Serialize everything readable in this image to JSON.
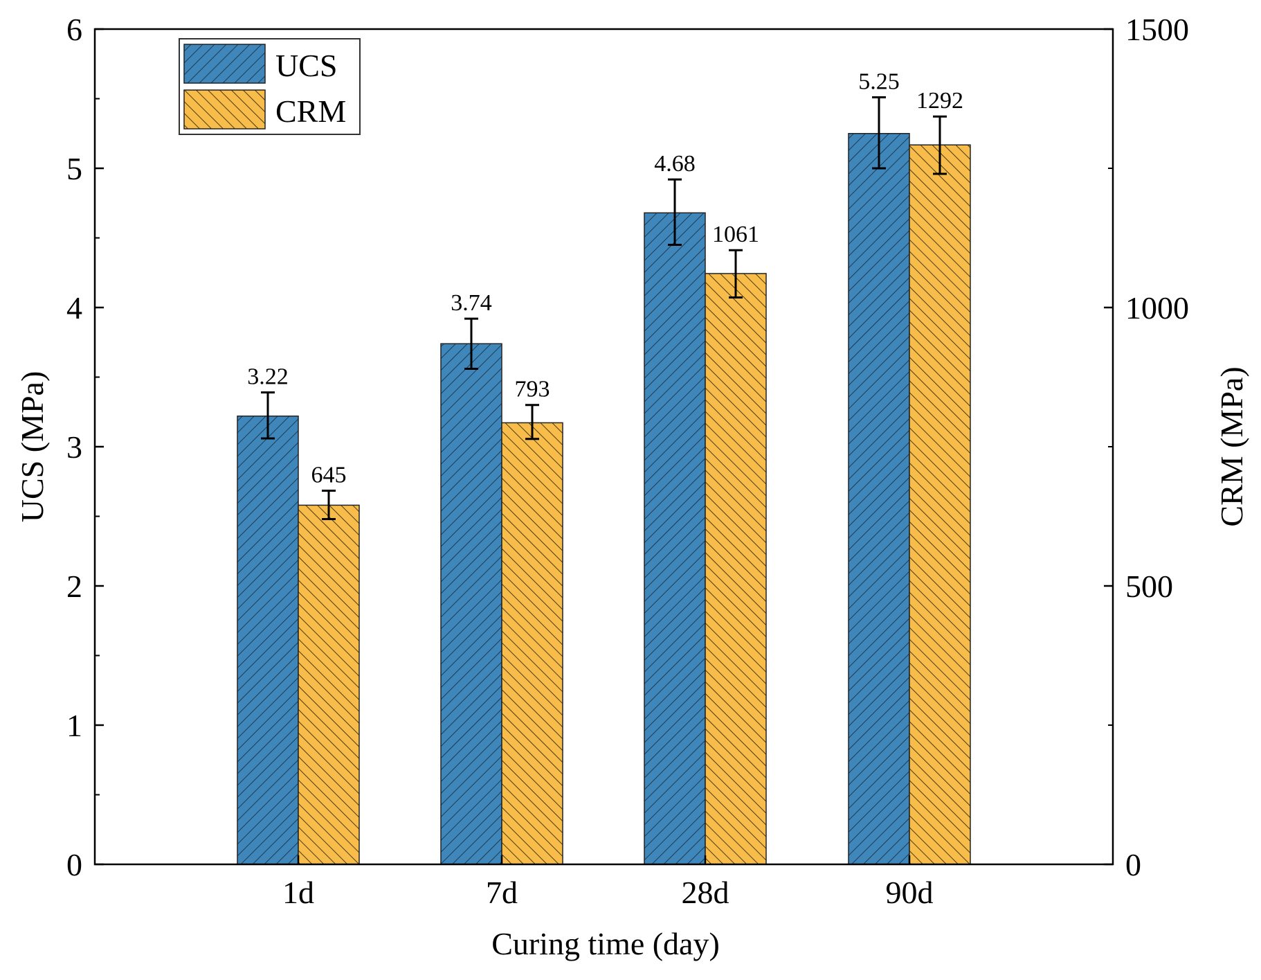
{
  "chart_data": {
    "type": "bar",
    "xlabel": "Curing time (day)",
    "categories": [
      "1d",
      "7d",
      "28d",
      "90d"
    ],
    "left_axis": {
      "label": "UCS (MPa)",
      "ylim": [
        0,
        6
      ],
      "ticks": [
        "0",
        "1",
        "2",
        "3",
        "4",
        "5",
        "6"
      ]
    },
    "right_axis": {
      "label": "CRM (MPa)",
      "ylim": [
        0,
        1500
      ],
      "ticks": [
        "0",
        "500",
        "1000",
        "1500"
      ]
    },
    "series": [
      {
        "name": "UCS",
        "axis": "left",
        "color": "#3f87bb",
        "hatch": "forward-diagonal",
        "values": [
          3.22,
          3.74,
          4.68,
          5.25
        ],
        "labels": [
          "3.22",
          "3.74",
          "4.68",
          "5.25"
        ],
        "error_low": [
          3.06,
          3.56,
          4.45,
          5.0
        ],
        "error_high": [
          3.39,
          3.92,
          4.92,
          5.51
        ]
      },
      {
        "name": "CRM",
        "axis": "right",
        "color": "#f7bc4a",
        "hatch": "back-diagonal",
        "values": [
          645,
          793,
          1061,
          1292
        ],
        "labels": [
          "645",
          "793",
          "1061",
          "1292"
        ],
        "error_low": [
          620,
          764,
          1018,
          1240
        ],
        "error_high": [
          671,
          825,
          1103,
          1343
        ]
      }
    ],
    "legend": {
      "position": "top-left",
      "entries": [
        "UCS",
        "CRM"
      ]
    }
  }
}
